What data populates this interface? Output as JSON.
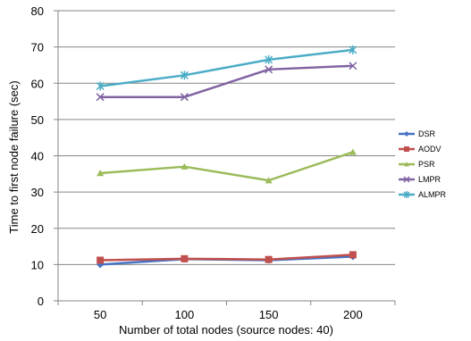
{
  "chart_data": {
    "type": "line",
    "xlabel": "Number of total nodes (source nodes: 40)",
    "ylabel": "Time to first node failure (sec)",
    "x": [
      50,
      100,
      150,
      200
    ],
    "xlim": [
      25,
      225
    ],
    "ylim": [
      0,
      80
    ],
    "yticks": [
      0,
      10,
      20,
      30,
      40,
      50,
      60,
      70,
      80
    ],
    "grid": "horizontal",
    "legend_position": "right",
    "series": [
      {
        "name": "DSR",
        "color": "#4472C4",
        "marker": "diamond",
        "values": [
          10.0,
          11.5,
          11.2,
          12.2
        ]
      },
      {
        "name": "AODV",
        "color": "#C0504D",
        "marker": "square",
        "values": [
          11.2,
          11.6,
          11.4,
          12.7
        ]
      },
      {
        "name": "PSR",
        "color": "#9BBB59",
        "marker": "triangle",
        "values": [
          35.2,
          37.0,
          33.2,
          41.0
        ]
      },
      {
        "name": "LMPR",
        "color": "#8064A2",
        "marker": "x",
        "values": [
          56.2,
          56.2,
          63.8,
          64.8
        ]
      },
      {
        "name": "ALMPR",
        "color": "#4BACC6",
        "marker": "star",
        "values": [
          59.2,
          62.2,
          66.5,
          69.2
        ]
      }
    ]
  }
}
